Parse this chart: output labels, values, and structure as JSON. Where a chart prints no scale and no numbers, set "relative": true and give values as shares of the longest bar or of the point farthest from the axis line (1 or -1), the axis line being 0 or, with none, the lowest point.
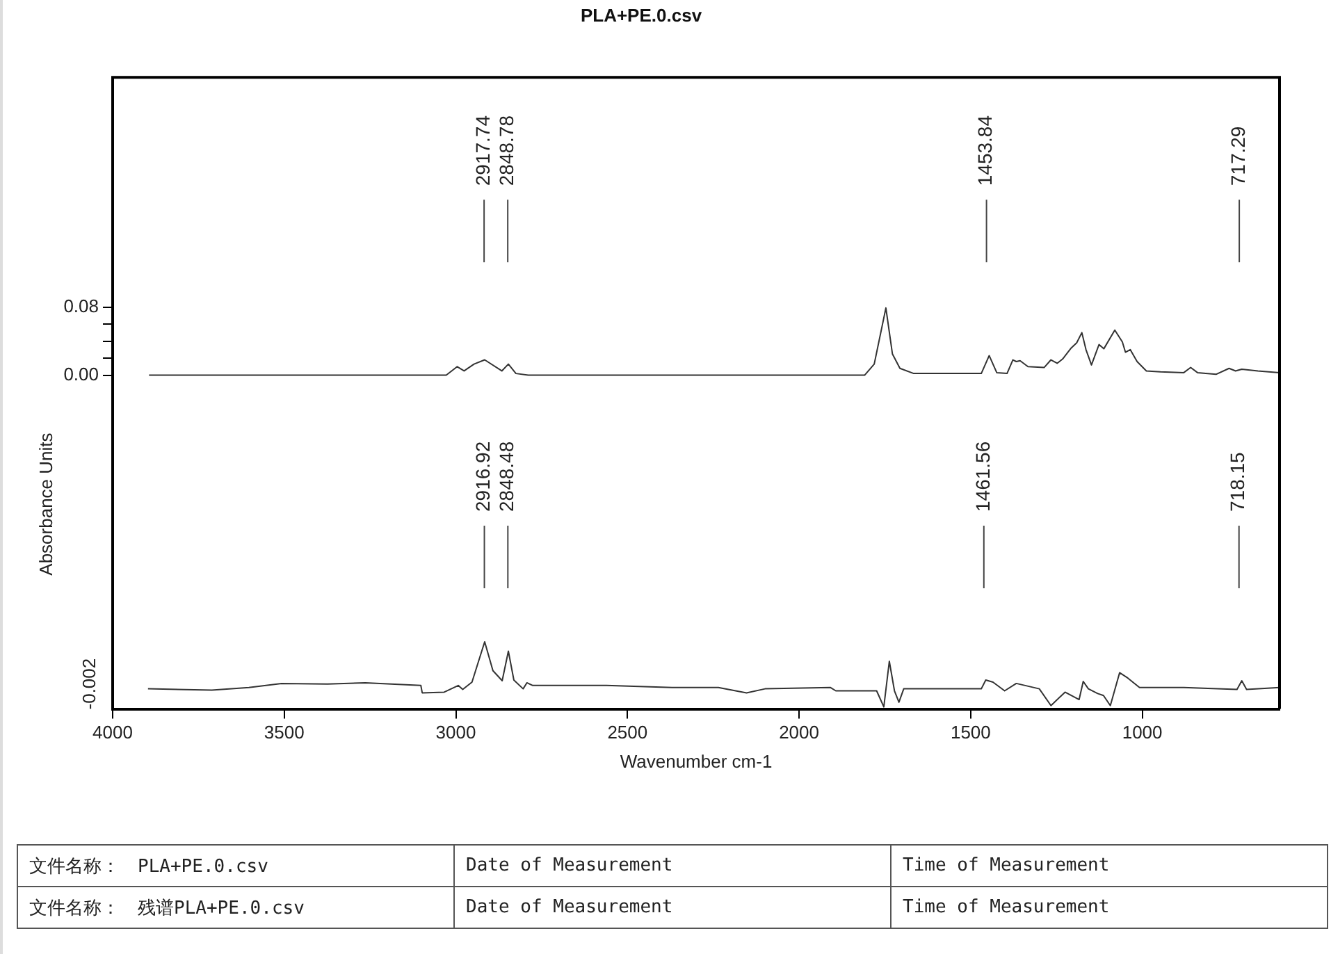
{
  "chart_data": [
    {
      "type": "line",
      "title": "PLA+PE.0.csv",
      "xlim": [
        4000,
        600
      ],
      "ylim": [
        -0.035,
        0.35
      ],
      "yticks": [
        {
          "value": 0,
          "label": "0.00"
        },
        {
          "value": 0.02,
          "label": null
        },
        {
          "value": 0.04,
          "label": null
        },
        {
          "value": 0.06,
          "label": null
        },
        {
          "value": 0.08,
          "label": "0.08"
        }
      ],
      "tick_labels": "y",
      "series": [
        {
          "color": "#333333",
          "x": [
            3894,
            3028,
            2996,
            2976,
            2947,
            2916,
            2866,
            2847,
            2825,
            2789,
            1809,
            1781,
            1747,
            1728,
            1706,
            1666,
            1469,
            1446,
            1424,
            1394,
            1377,
            1367,
            1356,
            1333,
            1286,
            1266,
            1248,
            1232,
            1207,
            1191,
            1176,
            1164,
            1148,
            1126,
            1112,
            1080,
            1058,
            1049,
            1035,
            1015,
            988,
            947,
            879,
            859,
            839,
            785,
            747,
            728,
            710,
            663,
            600
          ],
          "values": [
            0.0,
            0.0,
            0.01,
            0.005,
            0.013,
            0.018,
            0.005,
            0.013,
            0.002,
            0.0,
            0.0,
            0.013,
            0.079,
            0.025,
            0.008,
            0.002,
            0.002,
            0.023,
            0.003,
            0.002,
            0.018,
            0.016,
            0.017,
            0.01,
            0.009,
            0.018,
            0.014,
            0.019,
            0.032,
            0.038,
            0.05,
            0.03,
            0.012,
            0.036,
            0.031,
            0.053,
            0.039,
            0.027,
            0.03,
            0.016,
            0.005,
            0.004,
            0.003,
            0.009,
            0.003,
            0.001,
            0.008,
            0.005,
            0.007,
            0.005,
            0.003
          ]
        }
      ],
      "ref_lines": [
        {
          "axis": "x",
          "value": 2917.74,
          "label": "2917.74"
        },
        {
          "axis": "x",
          "value": 2848.78,
          "label": "2848.78"
        },
        {
          "axis": "x",
          "value": 1453.84,
          "label": "1453.84"
        },
        {
          "axis": "x",
          "value": 717.29,
          "label": "717.29"
        }
      ]
    },
    {
      "type": "line",
      "relative": true,
      "xlabel": "Wavenumber cm-1",
      "ylabel": "Absorbance Units",
      "xlim": [
        4000,
        600
      ],
      "xticks": [
        4000,
        3500,
        3000,
        2500,
        2000,
        1500,
        1000
      ],
      "tick_labels": "x",
      "series": [
        {
          "color": "#333333",
          "x": [
            3897,
            3711,
            3603,
            3508,
            3374,
            3264,
            3102,
            3098,
            3034,
            2993,
            2980,
            2953,
            2916,
            2892,
            2865,
            2847,
            2831,
            2804,
            2793,
            2776,
            2561,
            2370,
            2235,
            2153,
            2099,
            1909,
            1893,
            1774,
            1753,
            1737,
            1722,
            1709,
            1695,
            1469,
            1456,
            1435,
            1401,
            1367,
            1300,
            1266,
            1225,
            1184,
            1172,
            1157,
            1130,
            1113,
            1093,
            1066,
            1042,
            1008,
            879,
            724,
            710,
            696,
            600
          ],
          "values": [
            0.3,
            0.28,
            0.32,
            0.38,
            0.37,
            0.39,
            0.35,
            0.24,
            0.25,
            0.35,
            0.29,
            0.4,
            1.0,
            0.57,
            0.42,
            0.86,
            0.43,
            0.3,
            0.39,
            0.35,
            0.35,
            0.32,
            0.32,
            0.24,
            0.3,
            0.32,
            0.27,
            0.27,
            0.03,
            0.71,
            0.27,
            0.1,
            0.3,
            0.3,
            0.43,
            0.4,
            0.27,
            0.38,
            0.3,
            0.05,
            0.25,
            0.14,
            0.41,
            0.3,
            0.23,
            0.2,
            0.05,
            0.54,
            0.46,
            0.32,
            0.32,
            0.29,
            0.42,
            0.29,
            0.32
          ]
        }
      ],
      "ref_lines": [
        {
          "axis": "x",
          "value": 2916.92,
          "label": "2916.92"
        },
        {
          "axis": "x",
          "value": 2848.48,
          "label": "2848.48"
        },
        {
          "axis": "x",
          "value": 1461.56,
          "label": "1461.56"
        },
        {
          "axis": "x",
          "value": 718.15,
          "label": "718.15"
        }
      ],
      "annotations": [
        "-0.002",
        "文件名称：　PLA+PE.0.csv",
        "Date of Measurement",
        "Time of Measurement",
        "文件名称：　残谱PLA+PE.0.csv",
        "Date of Measurement",
        "Time of Measurement"
      ]
    }
  ]
}
